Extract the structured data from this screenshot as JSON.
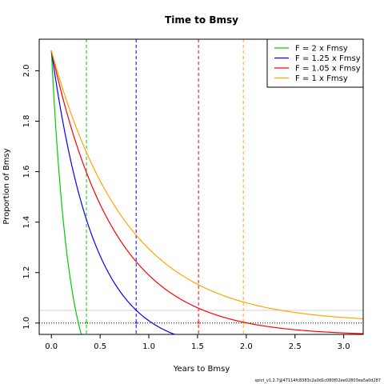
{
  "chart_data": {
    "type": "line",
    "title": "Time to Bmsy",
    "xlabel": "Years to Bmsy",
    "ylabel": "Proportion of Bmsy",
    "xlim": [
      -0.125,
      3.2
    ],
    "ylim": [
      0.955,
      2.125
    ],
    "xticks": [
      0.0,
      0.5,
      1.0,
      1.5,
      2.0,
      2.5,
      3.0
    ],
    "xtick_labels": [
      "0.0",
      "0.5",
      "1.0",
      "1.5",
      "2.0",
      "2.5",
      "3.0"
    ],
    "yticks": [
      1.0,
      1.2,
      1.4,
      1.6,
      1.8,
      2.0
    ],
    "ytick_labels": [
      "1.0",
      "1.2",
      "1.4",
      "1.6",
      "1.8",
      "2.0"
    ],
    "legend_position": "top-right",
    "grid": false,
    "start_value": 2.08,
    "series": [
      {
        "name": "F = 2 x Fmsy",
        "color": "#00cc00",
        "asymptote": 0.7,
        "rate": 5.5,
        "time_to_bmsy": 0.36
      },
      {
        "name": "F = 1.25 x Fmsy",
        "color": "#0000ff",
        "asymptote": 0.89,
        "rate": 2.3,
        "time_to_bmsy": 0.87
      },
      {
        "name": "F = 1.05 x Fmsy",
        "color": "#ff0000",
        "asymptote": 0.95,
        "rate": 1.55,
        "time_to_bmsy": 1.51
      },
      {
        "name": "F = 1 x Fmsy",
        "color": "#ffa500",
        "asymptote": 1.0,
        "rate": 1.3,
        "time_to_bmsy": 1.97
      }
    ],
    "reference_lines": [
      {
        "y": 1.0,
        "style": "dotted",
        "color": "#000000"
      },
      {
        "y": 1.05,
        "style": "solid",
        "color": "#d3d3d3"
      }
    ]
  },
  "footer": "spict_v1.2.7@47114fc8383c2a0d1c080f02ee02803ea5a0d287"
}
